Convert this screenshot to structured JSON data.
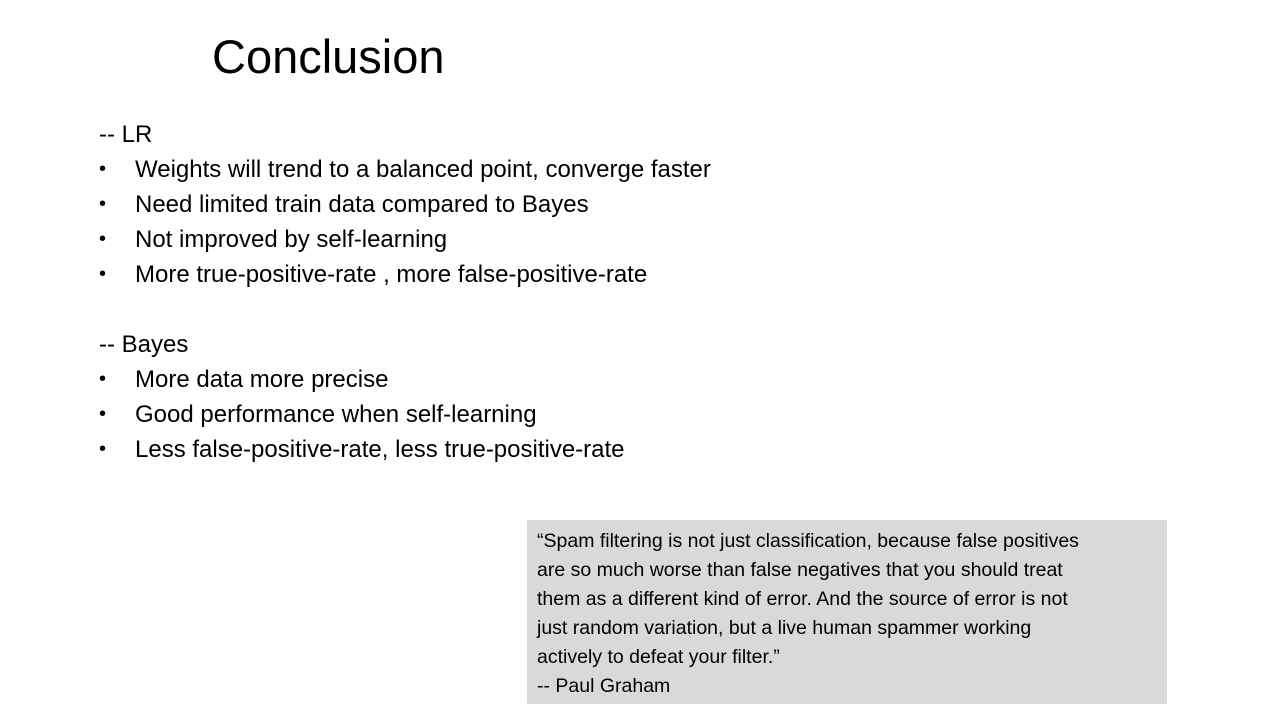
{
  "slide": {
    "title": "Conclusion",
    "sections": [
      {
        "heading": "-- LR",
        "bullets": [
          "Weights will trend to a balanced point, converge faster",
          "Need limited train data compared to Bayes",
          "Not improved by self-learning",
          "More true-positive-rate , more false-positive-rate"
        ]
      },
      {
        "heading": "-- Bayes",
        "bullets": [
          "More data more precise",
          "Good performance  when self-learning",
          "Less false-positive-rate, less true-positive-rate"
        ]
      }
    ],
    "bullet_symbol": "•",
    "quote": {
      "lines": [
        "“Spam filtering is not just classification, because false positives",
        "are so much worse than false negatives that you should treat",
        "them as a different kind of error. And the source of error is not",
        "just random variation, but a live human spammer working",
        "actively to defeat your filter.”"
      ],
      "attribution": "-- Paul Graham",
      "background": "#d9d9d9"
    }
  }
}
